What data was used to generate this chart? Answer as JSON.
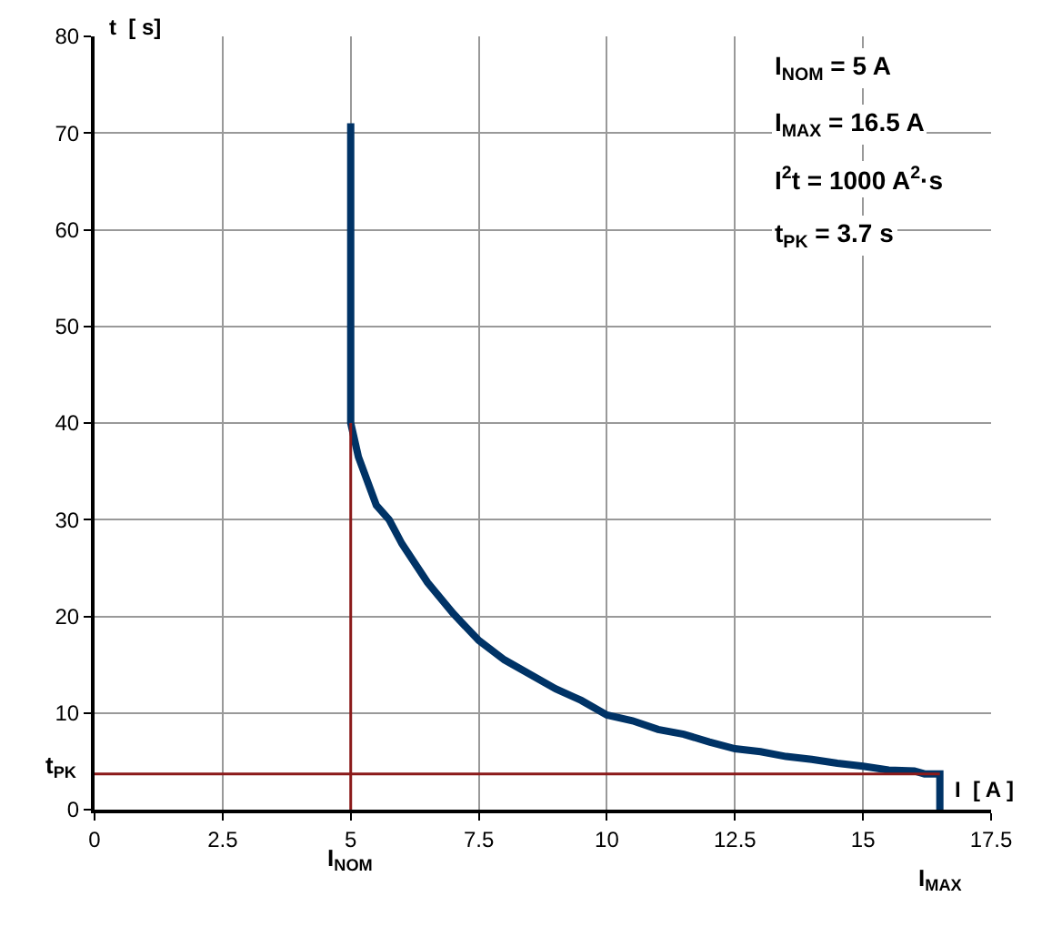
{
  "chart_data": {
    "type": "line",
    "xlabel": "I  [ A ]",
    "ylabel": "t  [ s]",
    "xlim": [
      0,
      17.5
    ],
    "xticks": [
      0,
      2.5,
      5,
      7.5,
      10,
      12.5,
      15,
      17.5
    ],
    "ylim": [
      0,
      80
    ],
    "yticks": [
      0,
      10,
      20,
      30,
      40,
      50,
      60,
      70,
      80
    ],
    "grid": true,
    "legend": false,
    "line_style": "solid",
    "marker": "none",
    "series": [
      {
        "color": "#003366",
        "x": [
          5,
          5,
          5.15,
          5.5,
          5.75,
          6,
          6.5,
          7,
          7.5,
          8,
          8.5,
          9,
          9.5,
          10,
          10.5,
          11,
          11.5,
          12,
          12.5,
          13,
          13.5,
          14,
          14.5,
          15,
          15.5,
          16,
          16.2,
          16.5,
          16.5
        ],
        "values": [
          71,
          40,
          36.5,
          31.5,
          30,
          27.5,
          23.5,
          20.3,
          17.5,
          15.5,
          14,
          12.5,
          11.3,
          9.8,
          9.2,
          8.3,
          7.8,
          7,
          6.3,
          6,
          5.5,
          5.2,
          4.8,
          4.5,
          4.1,
          4,
          3.7,
          3.7,
          0
        ]
      }
    ],
    "ref_lines": [
      {
        "axis": "x",
        "value": 5,
        "label": "I$_{NOM}$",
        "color": "#8b1a1a"
      },
      {
        "axis": "y",
        "value": 3.7,
        "label": "t$_{PK}$",
        "color": "#8b1a1a"
      }
    ],
    "annotations": [
      {
        "text": "I$_{MAX}$",
        "x": 16.5,
        "y": 0
      },
      "I$_{NOM}$ = 5 A",
      "I$_{MAX}$ = 16.5 A",
      "I$^{2}$t = 1000 A$^{2}$·s",
      "t$_{PK}$ = 3.7 s"
    ]
  }
}
